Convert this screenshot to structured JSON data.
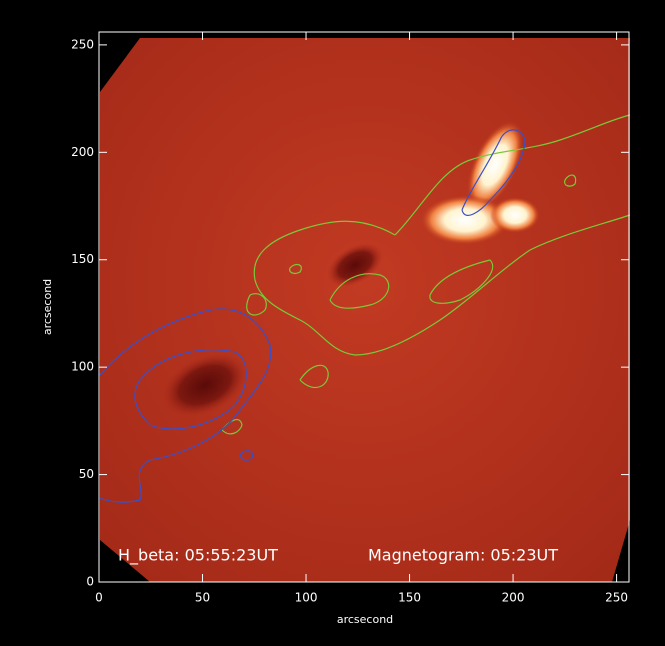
{
  "chart_data": {
    "type": "image",
    "xlabel": "arcsecond",
    "ylabel": "arcsecond",
    "xlim": [
      0,
      256
    ],
    "ylim": [
      0,
      256
    ],
    "xticks": [
      0,
      50,
      100,
      150,
      200,
      250
    ],
    "yticks": [
      0,
      50,
      100,
      150,
      200,
      250
    ],
    "annotations": [
      "H_beta: 05:55:23UT",
      "Magnetogram: 05:23UT"
    ]
  }
}
